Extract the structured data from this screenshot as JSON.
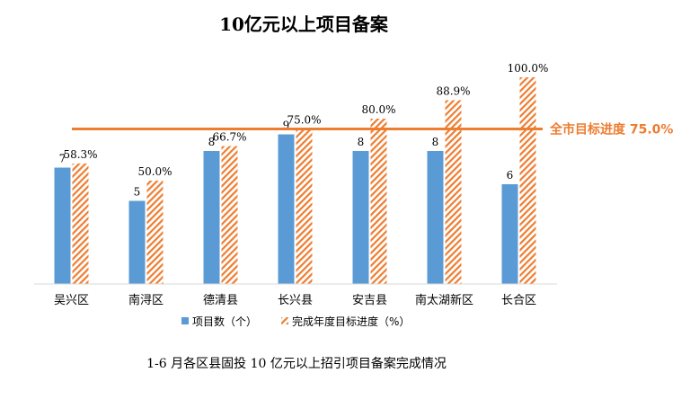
{
  "chart_data": {
    "type": "bar",
    "title": "10亿元以上项目备案",
    "categories": [
      "吴兴区",
      "南浔区",
      "德清县",
      "长兴县",
      "安吉县",
      "南太湖新区",
      "长合区"
    ],
    "series": [
      {
        "name": "项目数（个）",
        "values": [
          7,
          5,
          8,
          9,
          8,
          8,
          6
        ],
        "labels": [
          "7",
          "5",
          "8",
          "9",
          "8",
          "8",
          "6"
        ],
        "color": "#5b9bd5"
      },
      {
        "name": "完成年度目标进度（%）",
        "values": [
          58.3,
          50.0,
          66.7,
          75.0,
          80.0,
          88.9,
          100.0
        ],
        "labels": [
          "58.3%",
          "50.0%",
          "66.7%",
          "75.0%",
          "80.0%",
          "88.9%",
          "100.0%"
        ],
        "color": "#ed7d31",
        "pattern": "diagonal-hatch"
      }
    ],
    "target_line": {
      "value": 75.0,
      "label": "全市目标进度 75.0%",
      "color": "#ed7d31"
    },
    "legend_position": "bottom",
    "grid": false
  },
  "caption": "1-6 月各区县固投 10 亿元以上招引项目备案完成情况"
}
